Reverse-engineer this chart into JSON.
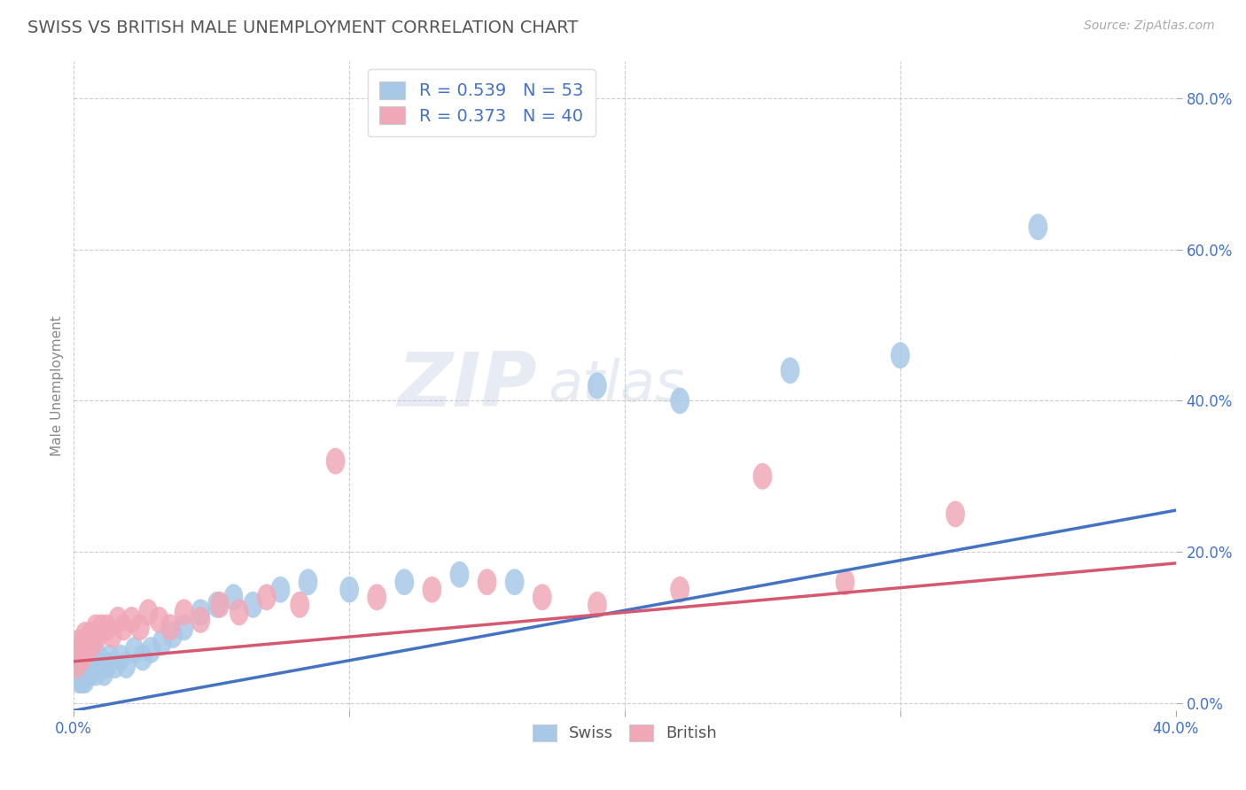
{
  "title": "SWISS VS BRITISH MALE UNEMPLOYMENT CORRELATION CHART",
  "source": "Source: ZipAtlas.com",
  "ylabel": "Male Unemployment",
  "yticks": [
    "0.0%",
    "20.0%",
    "40.0%",
    "60.0%",
    "80.0%"
  ],
  "ytick_vals": [
    0.0,
    0.2,
    0.4,
    0.6,
    0.8
  ],
  "xlim": [
    0.0,
    0.4
  ],
  "ylim": [
    -0.01,
    0.85
  ],
  "swiss_R": 0.539,
  "swiss_N": 53,
  "british_R": 0.373,
  "british_N": 40,
  "swiss_color": "#a8c8e8",
  "british_color": "#f0a8b8",
  "swiss_line_color": "#4472c4",
  "british_line_color": "#d45870",
  "legend_text_color": "#4472c4",
  "title_color": "#555555",
  "watermark_zip": "ZIP",
  "watermark_atlas": "atlas",
  "swiss_line_x0": 0.0,
  "swiss_line_y0": -0.01,
  "swiss_line_x1": 0.4,
  "swiss_line_y1": 0.255,
  "british_line_x0": 0.0,
  "british_line_y0": 0.055,
  "british_line_x1": 0.4,
  "british_line_y1": 0.185,
  "swiss_x": [
    0.001,
    0.001,
    0.001,
    0.002,
    0.002,
    0.002,
    0.002,
    0.003,
    0.003,
    0.003,
    0.003,
    0.003,
    0.004,
    0.004,
    0.004,
    0.005,
    0.005,
    0.005,
    0.006,
    0.006,
    0.007,
    0.007,
    0.008,
    0.009,
    0.009,
    0.01,
    0.011,
    0.012,
    0.013,
    0.015,
    0.017,
    0.019,
    0.022,
    0.025,
    0.028,
    0.032,
    0.036,
    0.04,
    0.046,
    0.052,
    0.058,
    0.065,
    0.075,
    0.085,
    0.1,
    0.12,
    0.14,
    0.16,
    0.19,
    0.22,
    0.26,
    0.3,
    0.35
  ],
  "swiss_y": [
    0.04,
    0.05,
    0.06,
    0.03,
    0.04,
    0.05,
    0.06,
    0.03,
    0.04,
    0.05,
    0.06,
    0.07,
    0.03,
    0.05,
    0.06,
    0.04,
    0.05,
    0.06,
    0.04,
    0.06,
    0.05,
    0.06,
    0.04,
    0.05,
    0.06,
    0.05,
    0.04,
    0.05,
    0.06,
    0.05,
    0.06,
    0.05,
    0.07,
    0.06,
    0.07,
    0.08,
    0.09,
    0.1,
    0.12,
    0.13,
    0.14,
    0.13,
    0.15,
    0.16,
    0.15,
    0.16,
    0.17,
    0.16,
    0.42,
    0.4,
    0.44,
    0.46,
    0.63
  ],
  "british_x": [
    0.001,
    0.001,
    0.002,
    0.002,
    0.003,
    0.003,
    0.004,
    0.004,
    0.005,
    0.005,
    0.006,
    0.007,
    0.008,
    0.009,
    0.01,
    0.012,
    0.014,
    0.016,
    0.018,
    0.021,
    0.024,
    0.027,
    0.031,
    0.035,
    0.04,
    0.046,
    0.053,
    0.06,
    0.07,
    0.082,
    0.095,
    0.11,
    0.13,
    0.15,
    0.17,
    0.19,
    0.22,
    0.25,
    0.28,
    0.32
  ],
  "british_y": [
    0.05,
    0.06,
    0.07,
    0.08,
    0.06,
    0.07,
    0.08,
    0.09,
    0.07,
    0.08,
    0.09,
    0.08,
    0.1,
    0.09,
    0.1,
    0.1,
    0.09,
    0.11,
    0.1,
    0.11,
    0.1,
    0.12,
    0.11,
    0.1,
    0.12,
    0.11,
    0.13,
    0.12,
    0.14,
    0.13,
    0.32,
    0.14,
    0.15,
    0.16,
    0.14,
    0.13,
    0.15,
    0.3,
    0.16,
    0.25
  ]
}
